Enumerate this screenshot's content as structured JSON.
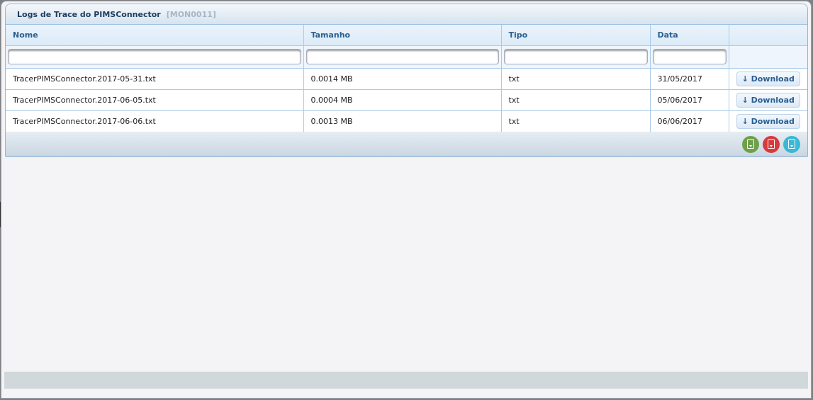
{
  "panel": {
    "title": "Logs de Trace do PIMSConnector",
    "code": "[MON0011]"
  },
  "table": {
    "columns": [
      "Nome",
      "Tamanho",
      "Tipo",
      "Data",
      ""
    ],
    "rows": [
      {
        "nome": "TracerPIMSConnector.2017-05-31.txt",
        "tamanho": "0.0014 MB",
        "tipo": "txt",
        "data": "31/05/2017",
        "action": "↓ Download"
      },
      {
        "nome": "TracerPIMSConnector.2017-06-05.txt",
        "tamanho": "0.0004 MB",
        "tipo": "txt",
        "data": "05/06/2017",
        "action": "↓ Download"
      },
      {
        "nome": "TracerPIMSConnector.2017-06-06.txt",
        "tamanho": "0.0013 MB",
        "tipo": "txt",
        "data": "06/06/2017",
        "action": "↓ Download"
      }
    ]
  },
  "export_icons": [
    {
      "icon": "excel-export-icon",
      "color": "#6ea04a"
    },
    {
      "icon": "pdf-export-icon",
      "color": "#d63a3f"
    },
    {
      "icon": "csv-export-icon",
      "color": "#3bb8d6"
    }
  ]
}
